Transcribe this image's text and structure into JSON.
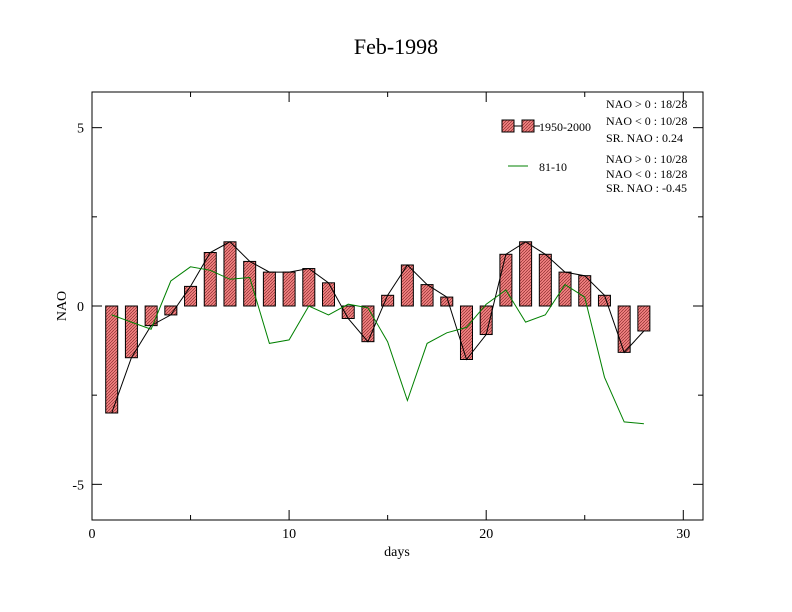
{
  "chart_data": {
    "type": "bar",
    "title": "Feb-1998",
    "xlabel": "days",
    "ylabel": "NAO",
    "xlim": [
      0,
      31
    ],
    "ylim": [
      -6,
      6
    ],
    "x_ticks": [
      0,
      10,
      20,
      30
    ],
    "x_tick_labels": [
      "0",
      "10",
      "20",
      "30"
    ],
    "y_ticks": [
      -5,
      0,
      5
    ],
    "y_tick_labels": [
      "-5",
      "0",
      "5"
    ],
    "x": [
      1,
      2,
      3,
      4,
      5,
      6,
      7,
      8,
      9,
      10,
      11,
      12,
      13,
      14,
      15,
      16,
      17,
      18,
      19,
      20,
      21,
      22,
      23,
      24,
      25,
      26,
      27,
      28
    ],
    "series": [
      {
        "name": "1950-2000",
        "kind": "bar",
        "color": "#f08080",
        "values": [
          -3.0,
          -1.45,
          -0.55,
          -0.25,
          0.55,
          1.5,
          1.8,
          1.25,
          0.95,
          0.95,
          1.05,
          0.65,
          -0.35,
          -1.0,
          0.3,
          1.15,
          0.6,
          0.25,
          -1.5,
          -0.8,
          1.45,
          1.8,
          1.45,
          0.95,
          0.85,
          0.3,
          -1.3,
          -0.7
        ]
      },
      {
        "name": "81-10",
        "kind": "line",
        "color": "#008000",
        "values": [
          -0.25,
          -0.45,
          -0.65,
          0.7,
          1.1,
          1.0,
          0.75,
          0.8,
          -1.05,
          -0.95,
          0.0,
          -0.25,
          0.05,
          -0.05,
          -1.0,
          -2.65,
          -1.05,
          -0.75,
          -0.6,
          0.05,
          0.45,
          -0.45,
          -0.25,
          0.6,
          0.25,
          -2.0,
          -3.25,
          -3.3
        ]
      }
    ],
    "legend": {
      "placement": "top-right",
      "entries": [
        {
          "label": "1950-2000",
          "stats": [
            "NAO > 0 :  18/28",
            "NAO < 0 :  10/28",
            "SR. NAO :  0.24"
          ]
        },
        {
          "label": "81-10",
          "stats": [
            "NAO > 0 :  10/28",
            "NAO < 0 :  18/28",
            "SR. NAO : -0.45"
          ]
        }
      ]
    }
  }
}
